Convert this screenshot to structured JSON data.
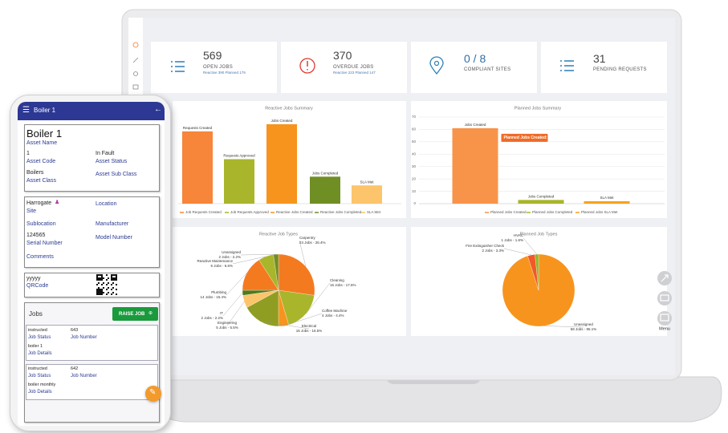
{
  "dashboard": {
    "kpis": [
      {
        "value": 569,
        "label": "OPEN JOBS",
        "detail": "Reactive 390  Planned 179"
      },
      {
        "value": 370,
        "label": "OVERDUE JOBS",
        "detail": "Reactive 223  Planned 147"
      },
      {
        "value": "0 / 8",
        "label": "COMPLIANT SITES"
      },
      {
        "value": 31,
        "label": "PENDING REQUESTS"
      }
    ],
    "side_menu_label": "Menu"
  },
  "chart_data": [
    {
      "type": "bar",
      "title": "Reactive Jobs Summary",
      "categories": [
        "Requests Created",
        "Requests Approved",
        "Jobs Created",
        "Jobs Completed",
        "SLA Met"
      ],
      "values": [
        91,
        56,
        100,
        34,
        23
      ],
      "colors": [
        "#f7853a",
        "#a9b52b",
        "#f7941d",
        "#6f8f25",
        "#fcc46b"
      ],
      "ylim": [
        0,
        110
      ],
      "legend": [
        "Job Requests Created",
        "Job Requests Approved",
        "Reactive Jobs Created",
        "Reactive Jobs Completed",
        "SLA Met"
      ]
    },
    {
      "type": "bar",
      "title": "Planned Jobs Summary",
      "categories": [
        "Jobs Created",
        "Jobs Completed",
        "SLA Met"
      ],
      "values": [
        61,
        3,
        2
      ],
      "colors": [
        "#f7944a",
        "#a9b52b",
        "#f7a21d"
      ],
      "ylim": [
        0,
        70
      ],
      "yticks": [
        0,
        10,
        20,
        30,
        40,
        50,
        60,
        70
      ],
      "grid": true,
      "legend": [
        "Planned Jobs Created",
        "Planned Jobs Completed",
        "Planned Jobs SLA Met"
      ],
      "tooltip": "Planned Jobs Created: 61"
    },
    {
      "type": "pie",
      "title": "Reactive Job Types",
      "categories": [
        "Carpentry",
        "Cleaning",
        "Coffee Machine",
        "Electrical",
        "Engineering",
        "IT",
        "Plumbing",
        "Reactive Maintenance",
        "Unassigned"
      ],
      "values": [
        26.4,
        17.6,
        4.4,
        16.5,
        5.5,
        2.2,
        15.4,
        6.6,
        2.2
      ],
      "value_labels": [
        "24 Jobs - 26.4%",
        "16 Jobs - 17.6%",
        "4 Jobs - 4.4%",
        "15 Jobs - 16.5%",
        "5 Jobs - 5.5%",
        "2 Jobs - 2.2%",
        "14 Jobs - 15.4%",
        "6 Jobs - 6.6%",
        "2 Jobs - 2.2%"
      ],
      "colors": [
        "#f47a20",
        "#a9b52b",
        "#f7941d",
        "#8f9e22",
        "#fcc46b",
        "#4e7a1a",
        "#f47a20",
        "#a9b52b",
        "#6f8f25"
      ]
    },
    {
      "type": "pie",
      "title": "Planned Job Types",
      "categories": [
        "Unassigned",
        "Fire Extinguisher Check",
        "HVAC"
      ],
      "values": [
        95.1,
        3.3,
        1.6
      ],
      "value_labels": [
        "58 Jobs - 95.1%",
        "2 Jobs - 3.3%",
        "1 Jobs - 1.6%"
      ],
      "colors": [
        "#f7941d",
        "#f05a28",
        "#8fb82a"
      ]
    }
  ],
  "phone": {
    "header": "Boiler 1",
    "asset": {
      "name": "Boiler 1",
      "name_label": "Asset Name",
      "code": "1",
      "code_label": "Asset Code",
      "status": "In Fault",
      "status_label": "Asset Status",
      "class": "Boilers",
      "class_label": "Asset Class",
      "sub_class_label": "Asset Sub Class"
    },
    "location": {
      "site": "Harrogate",
      "site_label": "Site",
      "location_label": "Location",
      "sublocation_label": "Sublocation",
      "manufacturer_label": "Manufacturer",
      "serial": "124565",
      "serial_label": "Serial Number",
      "model_label": "Model Number",
      "comments_label": "Comments"
    },
    "qr": {
      "value": "yyyyy",
      "label": "QRCode"
    },
    "jobs": {
      "title": "Jobs",
      "button": "RAISE JOB",
      "items": [
        {
          "status": "instructed",
          "status_label": "Job Status",
          "number": 643,
          "number_label": "Job Number",
          "details": "boiler 1",
          "details_label": "Job Details"
        },
        {
          "status": "instructed",
          "status_label": "Job Status",
          "number": 642,
          "number_label": "Job Number",
          "details": "boiler monthly",
          "details_label": "Job Details"
        }
      ]
    }
  }
}
